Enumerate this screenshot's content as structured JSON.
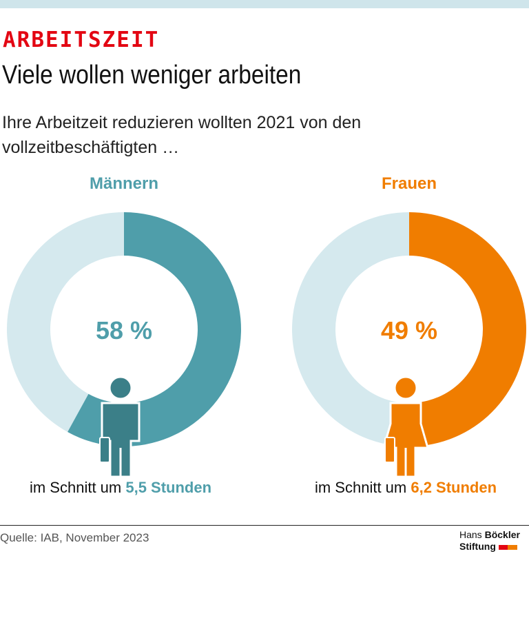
{
  "header": {
    "kicker": "ARBEITSZEIT",
    "title": "Viele wollen weniger arbeiten",
    "subtitle": "Ihre Arbeitzeit reduzieren wollten 2021 von den vollzeitbeschäftigten …"
  },
  "chart_data": [
    {
      "type": "pie",
      "title": "Männern",
      "value": 58,
      "value_label": "58 %",
      "remainder": 42,
      "color": "#4f9eaa",
      "remainder_color": "#d5e9ee",
      "note_prefix": "im Schnitt um",
      "note_value": "5,5 Stunden",
      "icon": "man-icon"
    },
    {
      "type": "pie",
      "title": "Frauen",
      "value": 49,
      "value_label": "49 %",
      "remainder": 51,
      "color": "#f07d00",
      "remainder_color": "#d5e9ee",
      "note_prefix": "im Schnitt um",
      "note_value": "6,2 Stunden",
      "icon": "woman-icon"
    }
  ],
  "footer": {
    "source": "Quelle: IAB, November 2023",
    "logo_line1_a": "Hans",
    "logo_line1_b": "Böckler",
    "logo_line2": "Stiftung",
    "logo_colors": [
      "#e30613",
      "#f07d00"
    ]
  }
}
